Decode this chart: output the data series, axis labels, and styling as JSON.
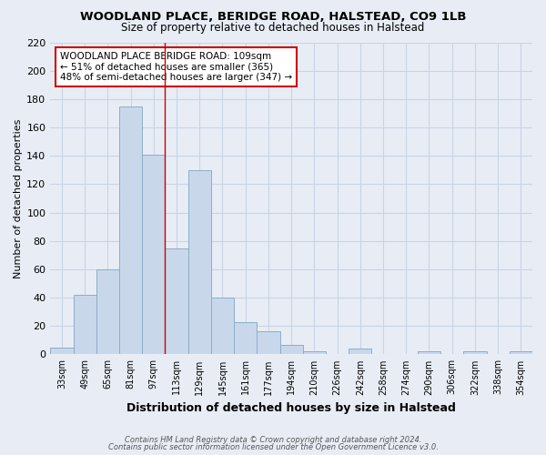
{
  "title1": "WOODLAND PLACE, BERIDGE ROAD, HALSTEAD, CO9 1LB",
  "title2": "Size of property relative to detached houses in Halstead",
  "xlabel": "Distribution of detached houses by size in Halstead",
  "ylabel": "Number of detached properties",
  "categories": [
    "33sqm",
    "49sqm",
    "65sqm",
    "81sqm",
    "97sqm",
    "113sqm",
    "129sqm",
    "145sqm",
    "161sqm",
    "177sqm",
    "194sqm",
    "210sqm",
    "226sqm",
    "242sqm",
    "258sqm",
    "274sqm",
    "290sqm",
    "306sqm",
    "322sqm",
    "338sqm",
    "354sqm"
  ],
  "values": [
    5,
    42,
    60,
    175,
    141,
    75,
    130,
    40,
    23,
    16,
    7,
    2,
    0,
    4,
    0,
    0,
    2,
    0,
    2,
    0,
    2
  ],
  "bar_color": "#c8d8ea",
  "bar_edge_color": "#8aaec8",
  "grid_color": "#c8d4e4",
  "bg_color": "#e8edf5",
  "vline_x": 4.5,
  "vline_color": "#cc0000",
  "annotation_text": "WOODLAND PLACE BERIDGE ROAD: 109sqm\n← 51% of detached houses are smaller (365)\n48% of semi-detached houses are larger (347) →",
  "annotation_box_color": "#cc0000",
  "footer1": "Contains HM Land Registry data © Crown copyright and database right 2024.",
  "footer2": "Contains public sector information licensed under the Open Government Licence v3.0.",
  "ylim": [
    0,
    220
  ],
  "yticks": [
    0,
    20,
    40,
    60,
    80,
    100,
    120,
    140,
    160,
    180,
    200,
    220
  ]
}
